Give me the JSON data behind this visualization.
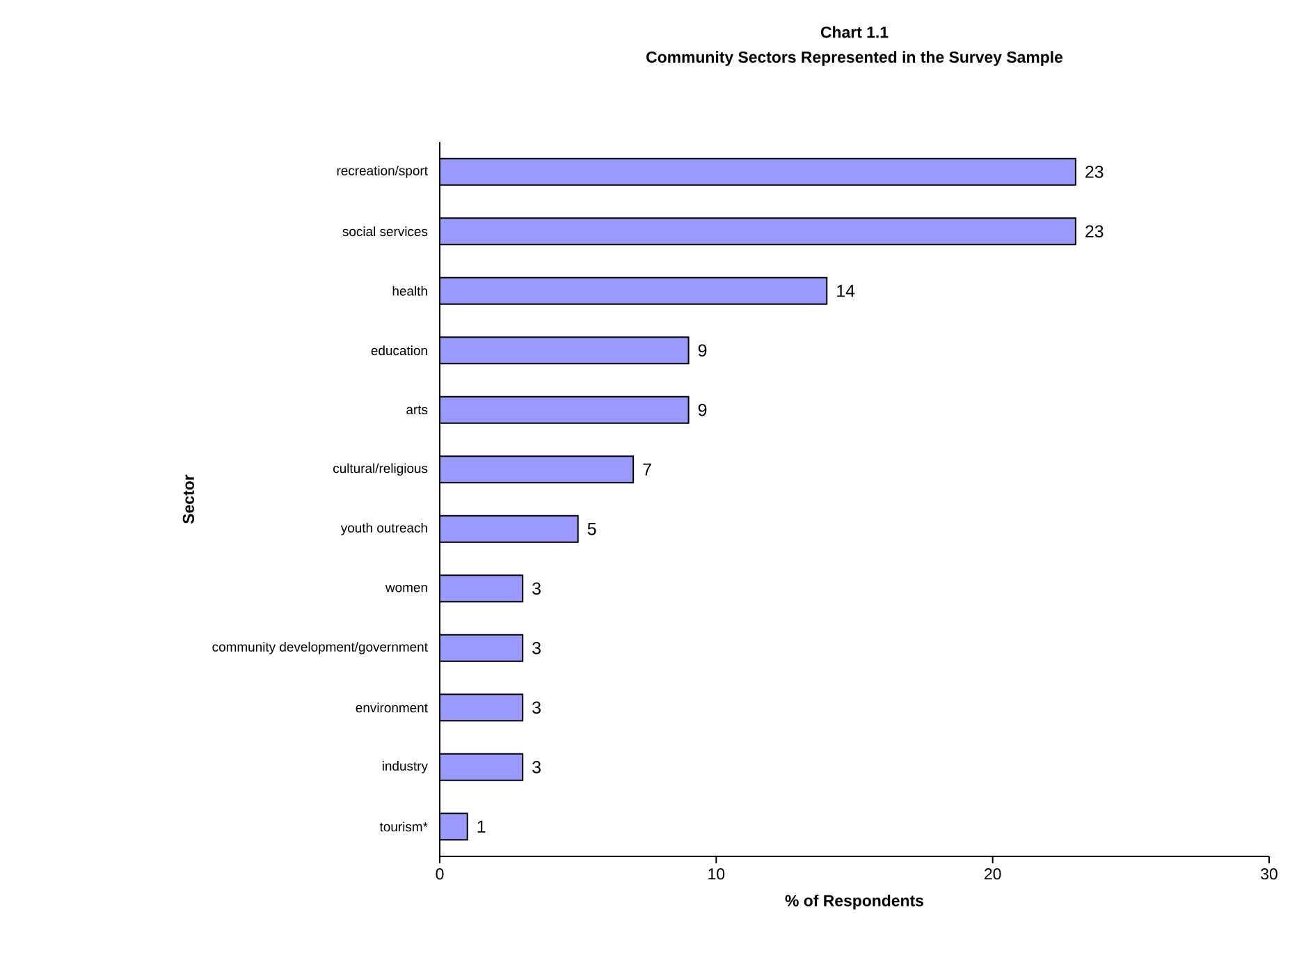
{
  "chart_data": {
    "type": "bar",
    "orientation": "horizontal",
    "title": "Chart 1.1",
    "subtitle": "Community Sectors Represented in the Survey Sample",
    "xlabel": "% of Respondents",
    "ylabel": "Sector",
    "categories": [
      "recreation/sport",
      "social services",
      "health",
      "education",
      "arts",
      "cultural/religious",
      "youth outreach",
      "women",
      "community development/government",
      "environment",
      "industry",
      "tourism*"
    ],
    "values": [
      23,
      23,
      14,
      9,
      9,
      7,
      5,
      3,
      3,
      3,
      3,
      1
    ],
    "color": "#9999ff",
    "xlim": [
      0,
      30
    ],
    "xticks": [
      0,
      10,
      20,
      30
    ],
    "data_labels": true
  }
}
